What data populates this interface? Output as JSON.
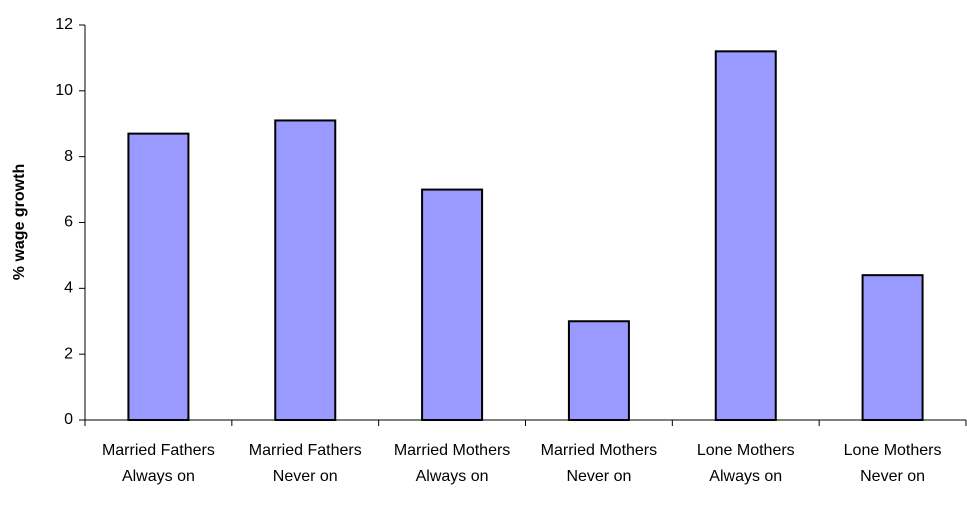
{
  "chart_data": {
    "type": "bar",
    "y_label": "% wage growth",
    "categories": [
      "Married Fathers Always on",
      "Married Fathers Never on",
      "Married Mothers Always on",
      "Married Mothers Never on",
      "Lone Mothers Always on",
      "Lone Mothers Never on"
    ],
    "values": [
      8.7,
      9.1,
      7.0,
      3.0,
      11.2,
      4.4
    ],
    "color": "#9999ff",
    "ylim": [
      0,
      12
    ],
    "yticks": [
      0,
      2,
      4,
      6,
      8,
      10,
      12
    ]
  }
}
